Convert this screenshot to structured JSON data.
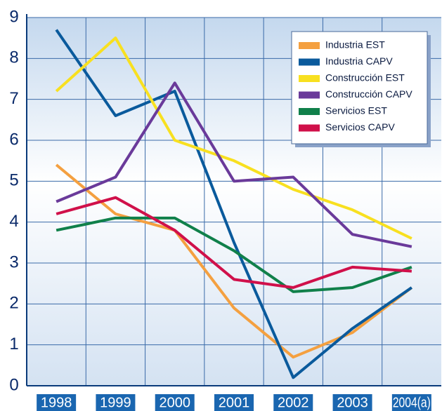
{
  "chart_data": {
    "type": "line",
    "categories": [
      "1998",
      "1999",
      "2000",
      "2001",
      "2002",
      "2003",
      "2004(a)"
    ],
    "series": [
      {
        "name": "Industria EST",
        "color": "#f4a040",
        "values": [
          5.4,
          4.2,
          3.8,
          1.9,
          0.7,
          1.3,
          2.4
        ]
      },
      {
        "name": "Industria CAPV",
        "color": "#0a5a9c",
        "values": [
          8.7,
          6.6,
          7.2,
          3.5,
          0.2,
          1.4,
          2.4
        ]
      },
      {
        "name": "Construcción EST",
        "color": "#f8e020",
        "values": [
          7.2,
          8.5,
          6.0,
          5.5,
          4.8,
          4.3,
          3.6
        ]
      },
      {
        "name": "Construcción CAPV",
        "color": "#6a3a9a",
        "values": [
          4.5,
          5.1,
          7.4,
          5.0,
          5.1,
          3.7,
          3.4
        ]
      },
      {
        "name": "Servicios EST",
        "color": "#10804a",
        "values": [
          3.8,
          4.1,
          4.1,
          3.3,
          2.3,
          2.4,
          2.9
        ]
      },
      {
        "name": "Servicios CAPV",
        "color": "#d0104a",
        "values": [
          4.2,
          4.6,
          3.8,
          2.6,
          2.4,
          2.9,
          2.8
        ]
      }
    ],
    "ylim": [
      0,
      9
    ],
    "yticks": [
      0,
      1,
      2,
      3,
      4,
      5,
      6,
      7,
      8,
      9
    ],
    "grid": true,
    "legend": "top-right"
  }
}
